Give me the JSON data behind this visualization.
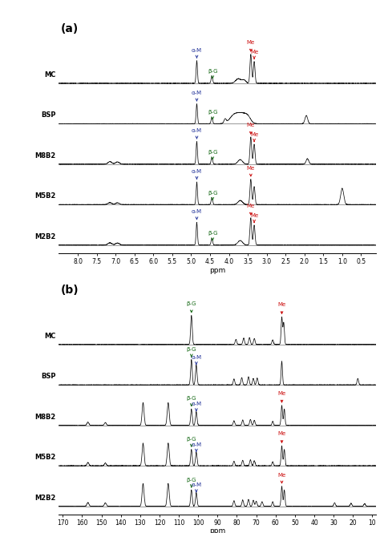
{
  "panel_a_label": "(a)",
  "panel_b_label": "(b)",
  "samples": [
    "MC",
    "BSP",
    "M8B2",
    "M5B2",
    "M2B2"
  ],
  "panel_a_xlabel": "ppm",
  "panel_a_xticks": [
    8.0,
    7.5,
    7.0,
    6.5,
    6.0,
    5.5,
    5.0,
    4.5,
    4.0,
    3.5,
    3.0,
    2.5,
    2.0,
    1.5,
    1.0,
    0.5
  ],
  "panel_b_xlabel": "ppm",
  "panel_b_xticks": [
    170,
    160,
    150,
    140,
    130,
    120,
    110,
    100,
    90,
    80,
    70,
    60,
    50,
    40,
    30,
    20,
    10
  ],
  "bg_color": "#ffffff",
  "line_color": "#111111",
  "arrow_blue": "#223399",
  "arrow_green": "#116611",
  "arrow_red": "#cc1111"
}
